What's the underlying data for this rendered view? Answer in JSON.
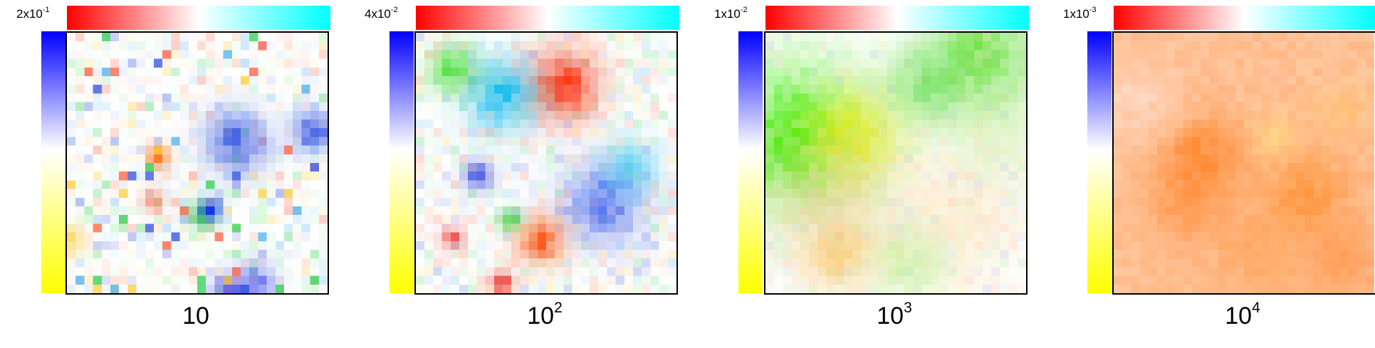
{
  "colors": {
    "horizontal_bar": [
      "#ff0000",
      "#ffffff",
      "#00ffff"
    ],
    "vertical_bar": [
      "#0000ff",
      "#ffffff",
      "#ffff00"
    ]
  },
  "chart_data": [
    {
      "type": "heatmap",
      "scale_label": {
        "base": "2x10",
        "exponent": "-1"
      },
      "caption": {
        "base": "10",
        "exponent": ""
      },
      "grid_size": 30,
      "texture": "fine noise, sparse saturated pixels",
      "hotspots": [
        {
          "x": 0.65,
          "y": 0.42,
          "color": "#2244dd",
          "r": 0.08,
          "s": 0.7
        },
        {
          "x": 0.94,
          "y": 0.38,
          "color": "#1a3fe0",
          "r": 0.05,
          "s": 0.8
        },
        {
          "x": 0.52,
          "y": 0.7,
          "color": "#22cc44",
          "r": 0.04,
          "s": 0.7
        },
        {
          "x": 0.35,
          "y": 0.48,
          "color": "#ff6600",
          "r": 0.03,
          "s": 0.9
        },
        {
          "x": 0.33,
          "y": 0.64,
          "color": "#ff5533",
          "r": 0.03,
          "s": 0.6
        },
        {
          "x": 0.62,
          "y": 0.99,
          "color": "#2222dd",
          "r": 0.04,
          "s": 0.8
        },
        {
          "x": 0.73,
          "y": 0.96,
          "color": "#3344ee",
          "r": 0.05,
          "s": 0.6
        },
        {
          "x": 0.55,
          "y": 0.68,
          "color": "#1133ee",
          "r": 0.03,
          "s": 0.8
        },
        {
          "x": 0.01,
          "y": 0.8,
          "color": "#ffcc33",
          "r": 0.04,
          "s": 0.6
        }
      ]
    },
    {
      "type": "heatmap",
      "scale_label": {
        "base": "4x10",
        "exponent": "-2"
      },
      "caption": {
        "base": "10",
        "exponent": "2"
      },
      "grid_size": 30,
      "texture": "mid-scale blobs",
      "hotspots": [
        {
          "x": 0.57,
          "y": 0.2,
          "color": "#ff3311",
          "r": 0.09,
          "s": 0.85
        },
        {
          "x": 0.33,
          "y": 0.24,
          "color": "#11bbee",
          "r": 0.09,
          "s": 0.8
        },
        {
          "x": 0.72,
          "y": 0.65,
          "color": "#3355ee",
          "r": 0.1,
          "s": 0.7
        },
        {
          "x": 0.82,
          "y": 0.52,
          "color": "#33ccee",
          "r": 0.07,
          "s": 0.6
        },
        {
          "x": 0.48,
          "y": 0.8,
          "color": "#ff5511",
          "r": 0.06,
          "s": 0.8
        },
        {
          "x": 0.14,
          "y": 0.14,
          "color": "#33dd22",
          "r": 0.06,
          "s": 0.7
        },
        {
          "x": 0.24,
          "y": 0.55,
          "color": "#2233dd",
          "r": 0.04,
          "s": 0.7
        },
        {
          "x": 0.33,
          "y": 0.96,
          "color": "#ee2222",
          "r": 0.03,
          "s": 0.8
        },
        {
          "x": 0.36,
          "y": 0.72,
          "color": "#22cc22",
          "r": 0.03,
          "s": 0.7
        },
        {
          "x": 0.14,
          "y": 0.79,
          "color": "#ee3333",
          "r": 0.03,
          "s": 0.7
        }
      ]
    },
    {
      "type": "heatmap",
      "scale_label": {
        "base": "1x10",
        "exponent": "-2"
      },
      "caption": {
        "base": "10",
        "exponent": "3"
      },
      "grid_size": 30,
      "texture": "smooth large-scale gradient",
      "hotspots": [
        {
          "x": 0.12,
          "y": 0.4,
          "color": "#33ee00",
          "r": 0.18,
          "s": 0.8
        },
        {
          "x": 0.83,
          "y": 0.1,
          "color": "#55dd22",
          "r": 0.14,
          "s": 0.7
        },
        {
          "x": 0.62,
          "y": 0.2,
          "color": "#55dd44",
          "r": 0.1,
          "s": 0.6
        },
        {
          "x": 0.33,
          "y": 0.4,
          "color": "#eeee00",
          "r": 0.12,
          "s": 0.65
        },
        {
          "x": 0.28,
          "y": 0.85,
          "color": "#ffbb33",
          "r": 0.09,
          "s": 0.5
        },
        {
          "x": 0.25,
          "y": 0.64,
          "color": "#ffbb88",
          "r": 0.18,
          "s": 0.35
        },
        {
          "x": 0.75,
          "y": 0.72,
          "color": "#ffcc88",
          "r": 0.16,
          "s": 0.3
        },
        {
          "x": 0.55,
          "y": 0.88,
          "color": "#aaee66",
          "r": 0.1,
          "s": 0.4
        },
        {
          "x": 0.9,
          "y": 0.4,
          "color": "#ccee99",
          "r": 0.14,
          "s": 0.35
        }
      ]
    },
    {
      "type": "heatmap",
      "scale_label": {
        "base": "1x10",
        "exponent": "-3"
      },
      "caption": {
        "base": "10",
        "exponent": "4"
      },
      "grid_size": 30,
      "texture": "smooth orange-dominated field",
      "base_color": "#ffc8a0",
      "hotspots": [
        {
          "x": 0.33,
          "y": 0.48,
          "color": "#ff7711",
          "r": 0.12,
          "s": 0.7
        },
        {
          "x": 0.28,
          "y": 0.68,
          "color": "#ff8833",
          "r": 0.1,
          "s": 0.5
        },
        {
          "x": 0.74,
          "y": 0.62,
          "color": "#ff8822",
          "r": 0.12,
          "s": 0.65
        },
        {
          "x": 0.88,
          "y": 0.88,
          "color": "#ff8833",
          "r": 0.1,
          "s": 0.5
        },
        {
          "x": 0.55,
          "y": 0.85,
          "color": "#ff9944",
          "r": 0.12,
          "s": 0.5
        },
        {
          "x": 0.62,
          "y": 0.4,
          "color": "#ffee88",
          "r": 0.06,
          "s": 0.4
        },
        {
          "x": 0.88,
          "y": 0.3,
          "color": "#ffcc66",
          "r": 0.08,
          "s": 0.35
        },
        {
          "x": 0.1,
          "y": 0.28,
          "color": "#ffeeee",
          "r": 0.12,
          "s": 0.45
        }
      ]
    }
  ]
}
